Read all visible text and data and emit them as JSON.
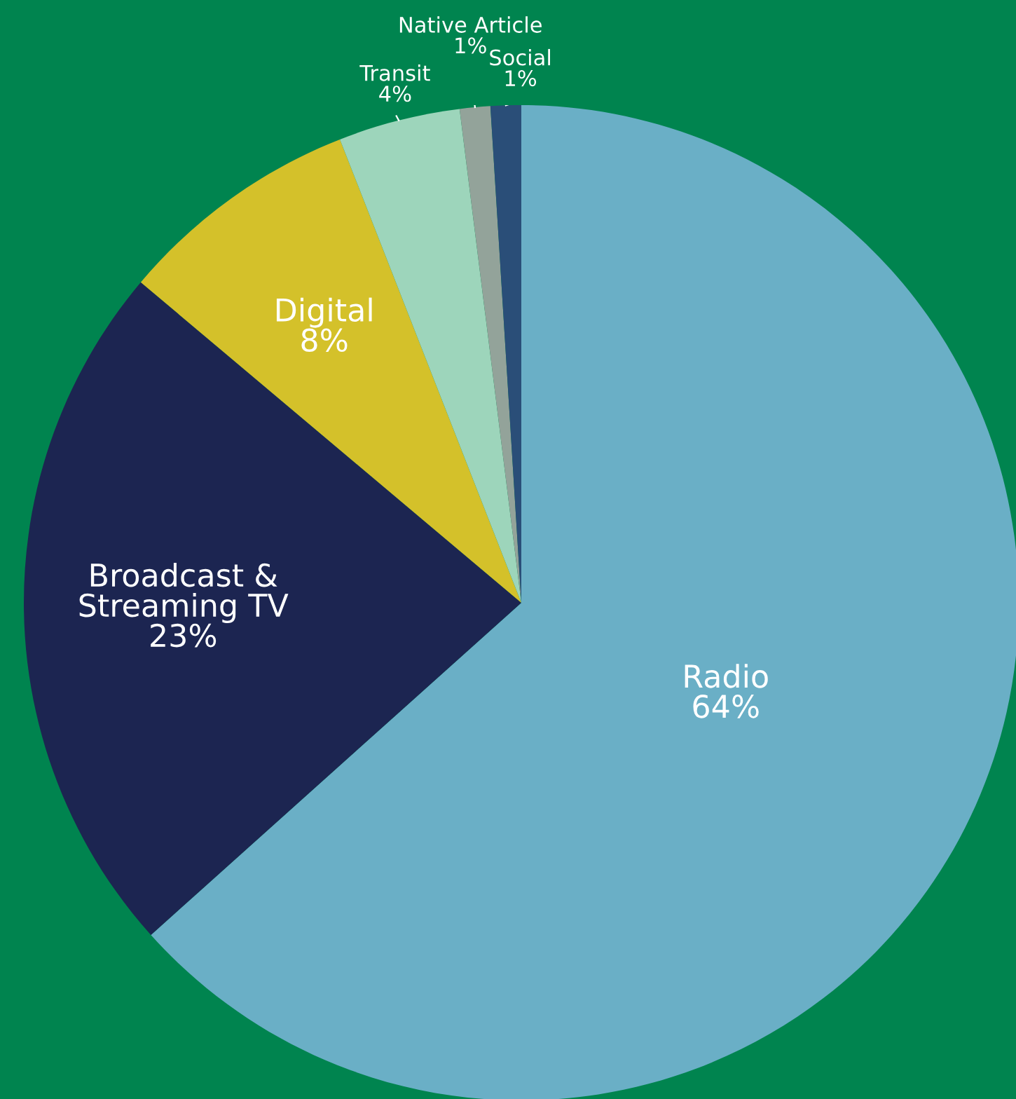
{
  "chart_data": {
    "type": "pie",
    "categories": [
      "Radio",
      "Broadcast &\nStreaming TV",
      "Digital",
      "Transit",
      "Native Article",
      "Social"
    ],
    "values": [
      64,
      23,
      8,
      4,
      1,
      1
    ],
    "value_labels": [
      "64%",
      "23%",
      "8%",
      "4%",
      "1%",
      "1%"
    ],
    "colors": [
      "#6aafc6",
      "#1c2551",
      "#d4c12a",
      "#9dd5bb",
      "#93a39a",
      "#2a4e78"
    ],
    "legend": false
  }
}
